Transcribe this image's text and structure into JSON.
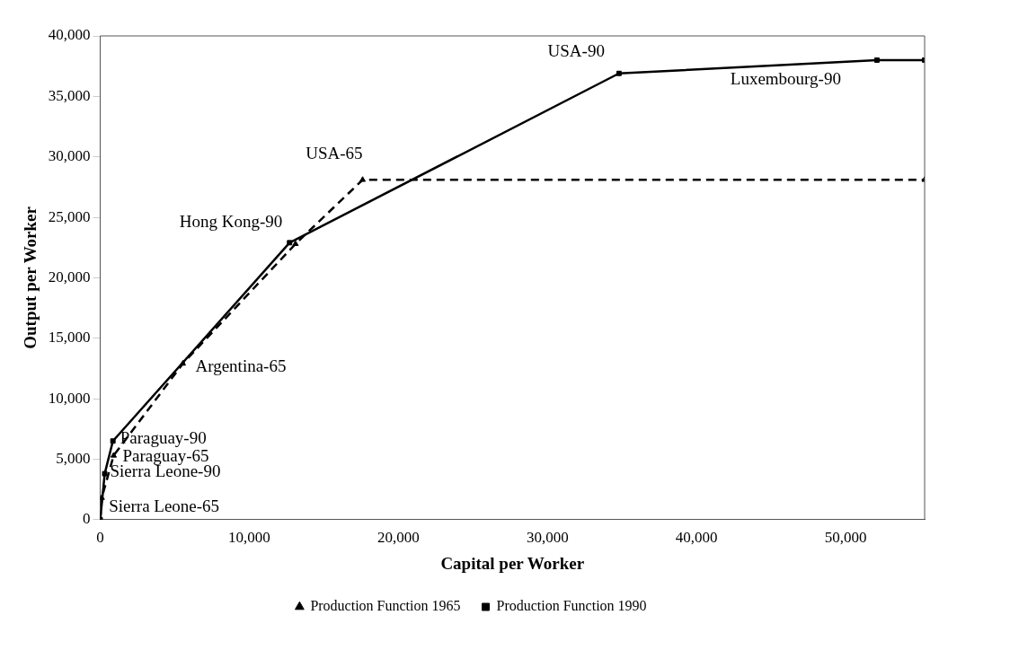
{
  "chart_data": {
    "type": "line",
    "xlabel": "Capital per Worker",
    "ylabel": "Output per Worker",
    "xlim": [
      0,
      55300
    ],
    "xticks": [
      {
        "value": 0,
        "label": "0"
      },
      {
        "value": 10000,
        "label": "10,000"
      },
      {
        "value": 20000,
        "label": "20,000"
      },
      {
        "value": 30000,
        "label": "30,000"
      },
      {
        "value": 40000,
        "label": "40,000"
      },
      {
        "value": 50000,
        "label": "50,000"
      }
    ],
    "ylim": [
      0,
      40000
    ],
    "yticks": [
      {
        "value": 0,
        "label": "0"
      },
      {
        "value": 5000,
        "label": "5,000"
      },
      {
        "value": 10000,
        "label": "10,000"
      },
      {
        "value": 15000,
        "label": "15,000"
      },
      {
        "value": 20000,
        "label": "20,000"
      },
      {
        "value": 25000,
        "label": "25,000"
      },
      {
        "value": 30000,
        "label": "30,000"
      },
      {
        "value": 35000,
        "label": "35,000"
      },
      {
        "value": 40000,
        "label": "40,000"
      }
    ],
    "grid": false,
    "legend": "bottom",
    "series": [
      {
        "name": "Production Function 1965",
        "color": "#000000",
        "line_style": "dashed",
        "marker": "triangle",
        "x": [
          0,
          100,
          900,
          5540,
          13100,
          17600,
          55300
        ],
        "values": [
          0,
          1800,
          5300,
          12900,
          22800,
          28100,
          28100
        ]
      },
      {
        "name": "Production Function 1990",
        "color": "#000000",
        "line_style": "solid",
        "marker": "square",
        "x": [
          0,
          300,
          850,
          12700,
          34800,
          52100,
          55300
        ],
        "values": [
          0,
          3800,
          6500,
          22900,
          36900,
          38000,
          38000
        ]
      }
    ],
    "annotations": [
      {
        "text": "Sierra Leone-65",
        "x": 100,
        "y": 1800
      },
      {
        "text": "Sierra Leone-90",
        "x": 300,
        "y": 3800
      },
      {
        "text": "Paraguay-65",
        "x": 900,
        "y": 5300
      },
      {
        "text": "Paraguay-90",
        "x": 850,
        "y": 6500
      },
      {
        "text": "Argentina-65",
        "x": 5540,
        "y": 12900
      },
      {
        "text": "Hong Kong-90",
        "x": 12700,
        "y": 22900
      },
      {
        "text": "USA-65",
        "x": 17600,
        "y": 28100
      },
      {
        "text": "USA-90",
        "x": 34800,
        "y": 36900
      },
      {
        "text": "Luxembourg-90",
        "x": 52100,
        "y": 38000
      }
    ]
  }
}
